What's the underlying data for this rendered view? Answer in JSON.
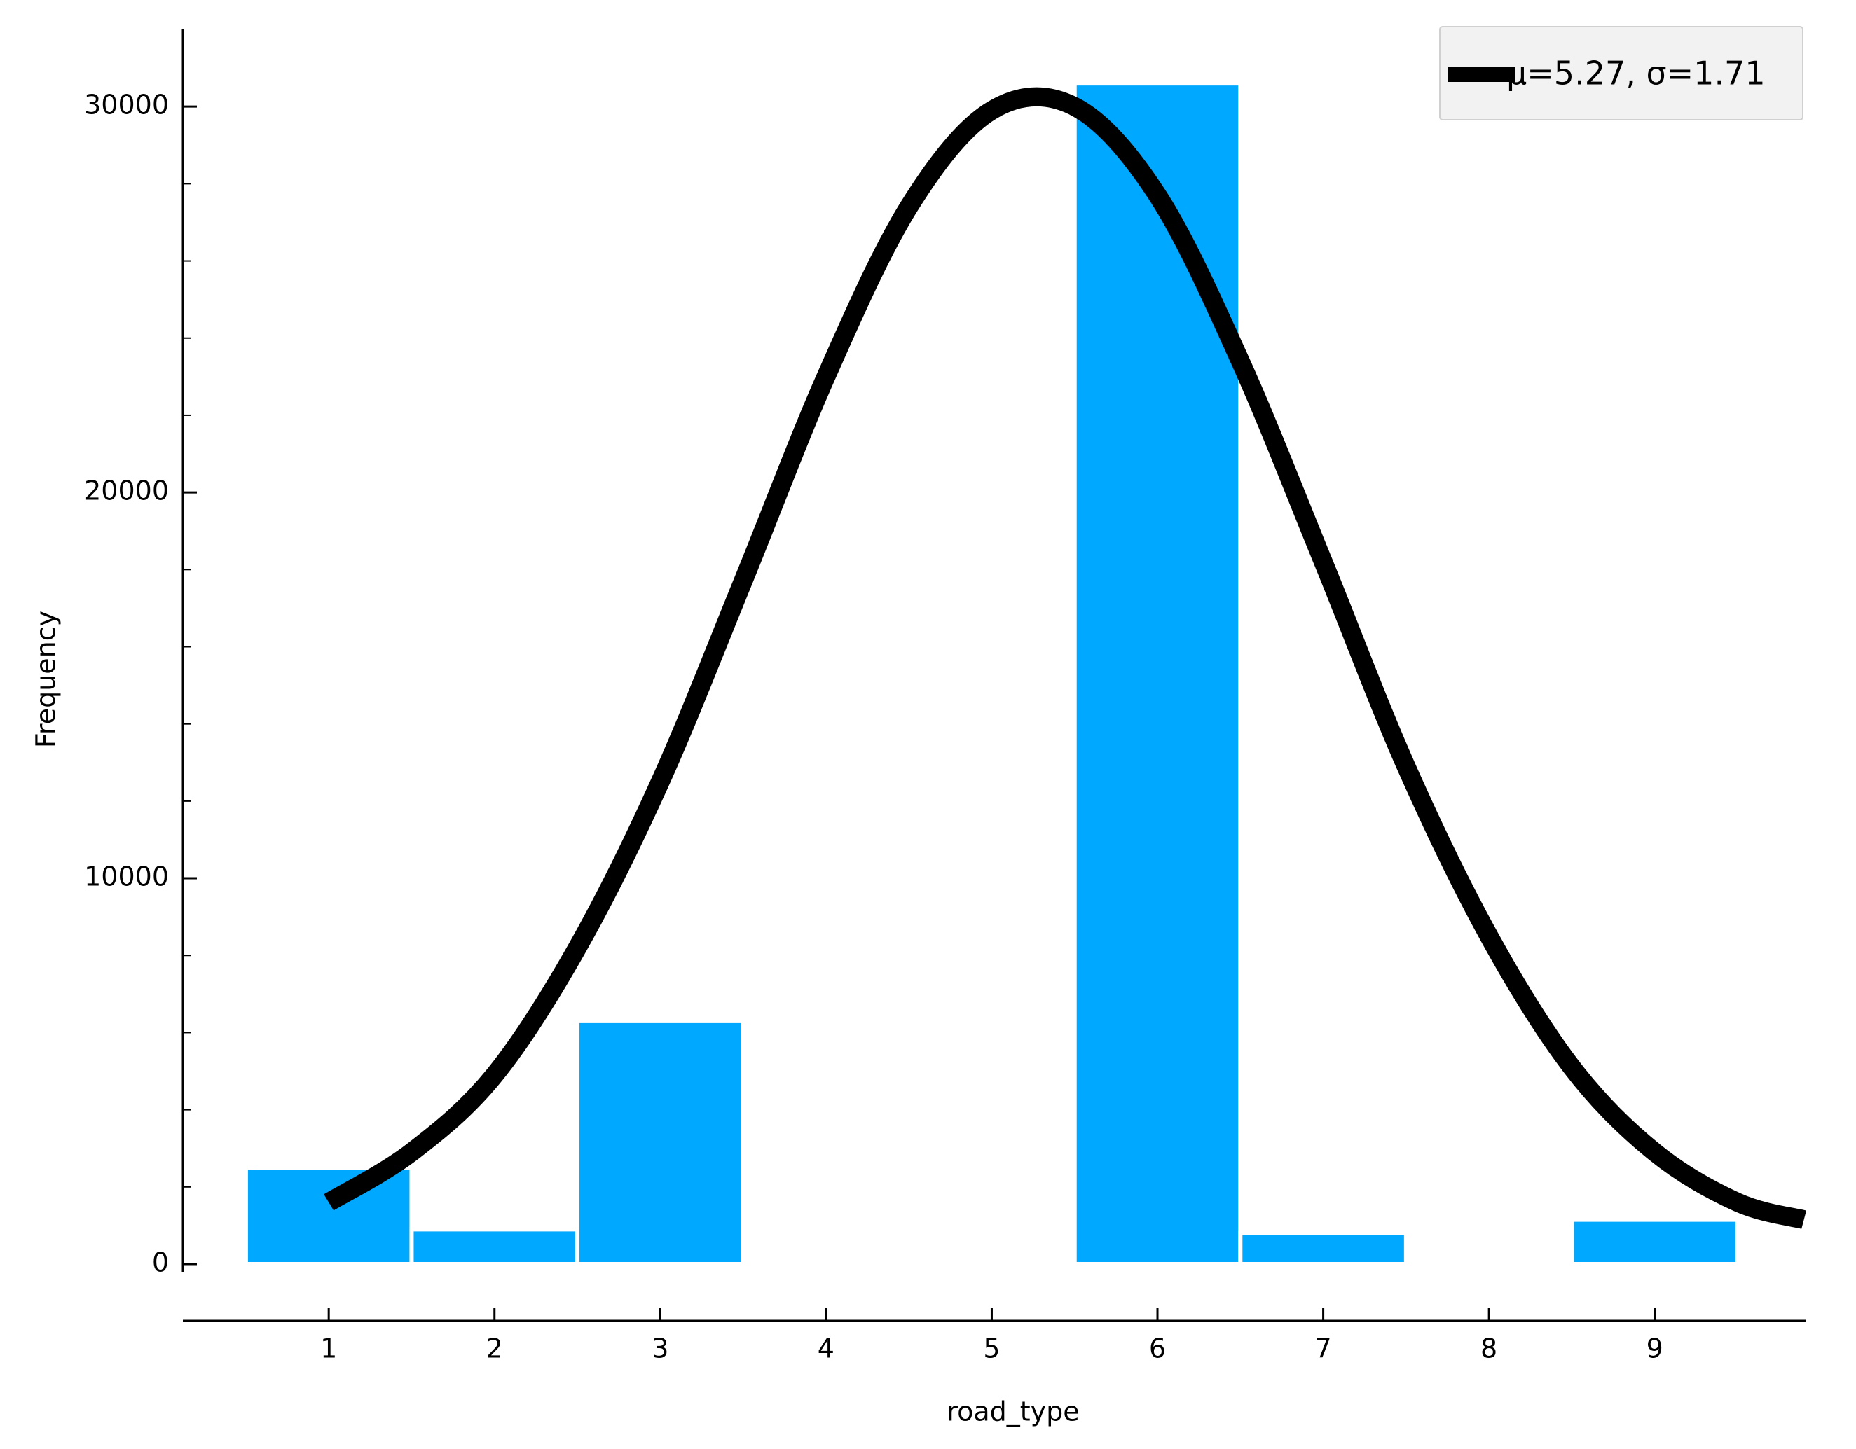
{
  "chart_data": {
    "type": "histogram",
    "x_label": "road_type",
    "y_label": "Frequency",
    "bins": [
      0.5,
      1.5,
      2.5,
      3.5,
      4.5,
      5.5,
      6.5,
      7.5,
      8.5,
      9.5
    ],
    "values": [
      2500,
      900,
      6300,
      0,
      0,
      30600,
      800,
      0,
      1150
    ],
    "color": "#00a8ff",
    "curve": {
      "name": "μ=5.27, σ=1.71",
      "color": "#000000",
      "x": [
        1.0,
        1.5,
        2.0,
        2.5,
        3.0,
        3.5,
        4.0,
        4.5,
        5.0,
        5.5,
        6.0,
        6.5,
        7.0,
        7.5,
        8.0,
        8.5,
        9.0,
        9.5,
        9.9
      ],
      "values": [
        1600,
        2900,
        4900,
        8200,
        12500,
        17700,
        23000,
        27400,
        29900,
        30000,
        27700,
        23400,
        18200,
        12900,
        8500,
        5100,
        2900,
        1600,
        1150
      ]
    },
    "xlim": [
      0.12,
      9.91
    ],
    "xticks": [
      1,
      2,
      3,
      4,
      5,
      6,
      7,
      8,
      9
    ],
    "ylim": [
      -200,
      32000
    ],
    "yticks": [
      0,
      10000,
      20000,
      30000
    ],
    "minor_yticks": [
      2000,
      4000,
      6000,
      8000,
      12000,
      14000,
      16000,
      18000,
      22000,
      24000,
      26000,
      28000
    ],
    "legend": "upper right"
  }
}
